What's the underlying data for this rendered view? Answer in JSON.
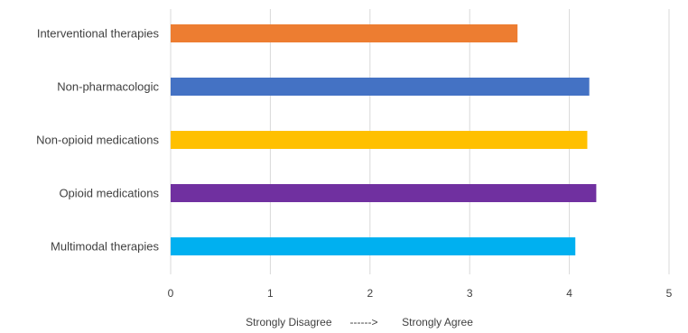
{
  "chart_data": {
    "type": "bar",
    "orientation": "horizontal",
    "categories": [
      "Interventional therapies",
      "Non-pharmacologic",
      "Non-opioid medications",
      "Opioid medications",
      "Multimodal therapies"
    ],
    "values": [
      3.48,
      4.2,
      4.18,
      4.27,
      4.06
    ],
    "colors": [
      "#ED7D31",
      "#4472C4",
      "#FFC000",
      "#7030A0",
      "#00B0F0"
    ],
    "xlim": [
      0,
      5
    ],
    "xticks": [
      "0",
      "1",
      "2",
      "3",
      "4",
      "5"
    ],
    "xlabel": "Strongly Disagree      ------>        Strongly Agree",
    "ylabel": "",
    "title": "",
    "grid": "vertical",
    "legend": "none"
  }
}
